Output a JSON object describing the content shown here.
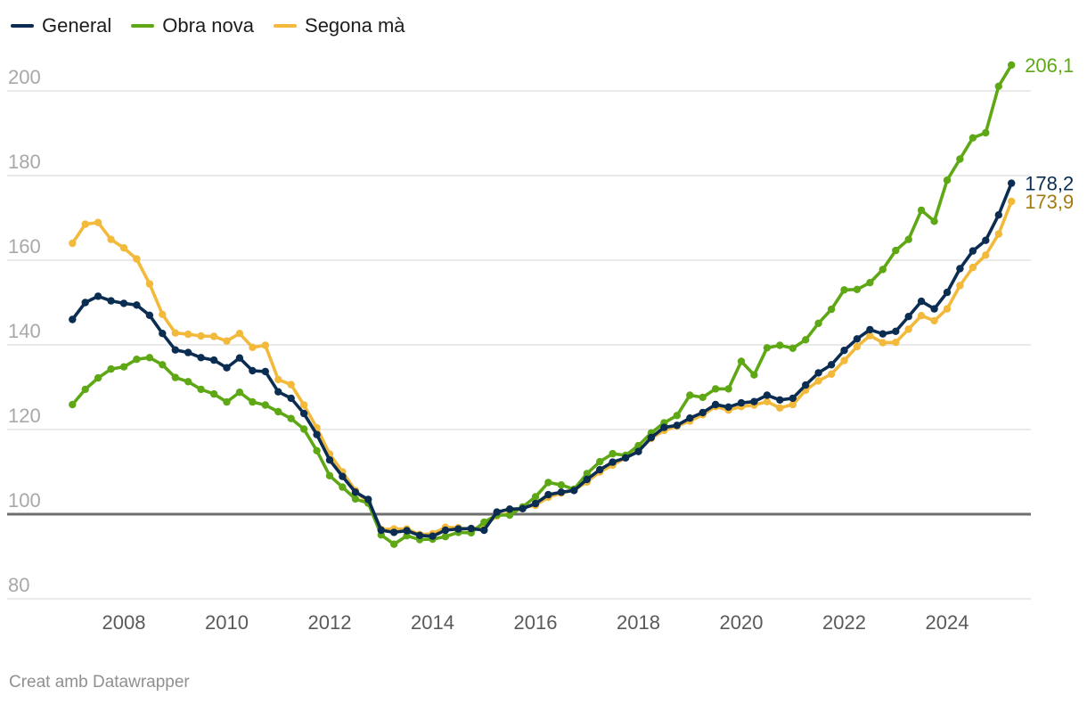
{
  "chart_data": {
    "type": "line",
    "title": "",
    "xlabel": "",
    "ylabel": "",
    "ylim": [
      77,
      210
    ],
    "y_ticks": [
      80,
      100,
      120,
      140,
      160,
      180,
      200
    ],
    "y_tick_labels": [
      "80",
      "100",
      "120",
      "140",
      "160",
      "180",
      "200"
    ],
    "x_ticks": [
      2008,
      2010,
      2012,
      2014,
      2016,
      2018,
      2020,
      2022,
      2024
    ],
    "x_tick_labels": [
      "2008",
      "2010",
      "2012",
      "2014",
      "2016",
      "2018",
      "2020",
      "2022",
      "2024"
    ],
    "xlim": [
      2006.65,
      2025.6
    ],
    "reference_line": 100,
    "grid": true,
    "legend": "top-left",
    "start_year": 2007.0,
    "x_step": 0.25,
    "series": [
      {
        "name": "General",
        "color": "#0b2d52",
        "end_label": "178,2",
        "values": [
          146.0,
          150.0,
          151.5,
          150.4,
          149.8,
          149.4,
          147.0,
          142.7,
          138.8,
          138.2,
          137.0,
          136.4,
          134.6,
          136.9,
          133.9,
          133.7,
          128.9,
          127.4,
          123.8,
          118.8,
          112.8,
          108.9,
          105.2,
          103.5,
          96.2,
          95.7,
          96.1,
          95.0,
          94.8,
          96.2,
          96.5,
          96.6,
          96.2,
          100.5,
          101.2,
          101.3,
          102.5,
          104.6,
          105.2,
          105.6,
          108.2,
          110.5,
          112.3,
          113.3,
          114.8,
          118.1,
          120.5,
          121.0,
          122.7,
          124.0,
          125.9,
          125.3,
          126.3,
          126.6,
          128.1,
          127.0,
          127.4,
          130.5,
          133.4,
          135.3,
          138.7,
          141.4,
          143.6,
          142.6,
          143.2,
          146.7,
          150.3,
          148.5,
          152.4,
          158.0,
          162.2,
          164.7,
          170.7,
          178.2
        ]
      },
      {
        "name": "Obra nova",
        "color": "#5fa815",
        "end_label": "206,1",
        "values": [
          125.9,
          129.5,
          132.2,
          134.3,
          134.8,
          136.6,
          137.0,
          135.3,
          132.3,
          131.3,
          129.5,
          128.4,
          126.5,
          128.8,
          126.5,
          125.8,
          124.2,
          122.6,
          120.1,
          115.0,
          109.1,
          106.4,
          103.6,
          102.6,
          95.1,
          92.9,
          94.9,
          94.0,
          94.1,
          94.7,
          95.7,
          95.6,
          98.1,
          99.8,
          99.8,
          101.7,
          104.1,
          107.5,
          106.9,
          105.9,
          109.6,
          112.4,
          114.3,
          113.9,
          116.2,
          119.2,
          121.6,
          123.3,
          128.1,
          127.6,
          129.6,
          129.6,
          136.1,
          132.9,
          139.3,
          139.9,
          139.2,
          141.2,
          145.1,
          148.4,
          153.0,
          153.1,
          154.7,
          157.8,
          162.3,
          164.9,
          171.8,
          169.2,
          178.9,
          183.9,
          188.9,
          190.1,
          201.1,
          206.1
        ]
      },
      {
        "name": "Segona mà",
        "color": "#f2b93b",
        "end_label": "173,9",
        "end_label_color": "#a17a10",
        "values": [
          164.0,
          168.5,
          168.9,
          164.9,
          162.9,
          160.3,
          154.4,
          147.2,
          142.8,
          142.5,
          142.1,
          142.0,
          140.9,
          142.7,
          139.4,
          139.9,
          131.8,
          130.6,
          125.8,
          120.4,
          114.2,
          110.0,
          105.6,
          102.6,
          96.4,
          96.5,
          96.5,
          95.2,
          95.4,
          96.9,
          96.8,
          96.4,
          97.3,
          99.6,
          100.2,
          101.5,
          102.1,
          104.0,
          105.0,
          105.7,
          107.6,
          110.0,
          111.6,
          113.3,
          115.1,
          117.9,
          119.8,
          120.8,
          122.0,
          123.5,
          125.4,
          124.6,
          125.4,
          125.8,
          126.6,
          125.1,
          125.9,
          129.3,
          131.5,
          133.1,
          136.3,
          139.6,
          142.2,
          140.5,
          140.6,
          143.7,
          146.9,
          145.7,
          148.5,
          154.0,
          158.3,
          161.2,
          166.2,
          173.9
        ]
      }
    ]
  },
  "footer": {
    "credit": "Creat amb Datawrapper"
  }
}
